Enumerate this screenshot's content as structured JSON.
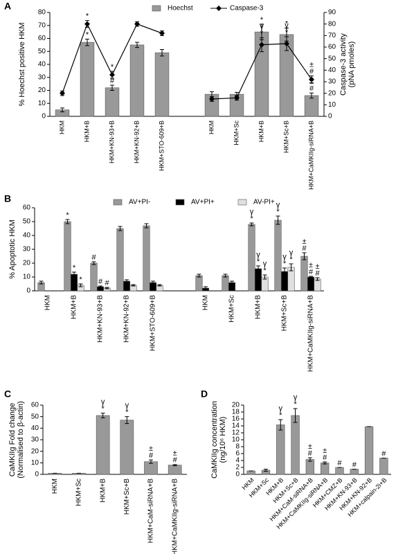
{
  "chart_data": [
    {
      "type": "bar_line",
      "label": "A",
      "legend": "top",
      "ylabel": "% Hoechst positive HKM",
      "y2label": [
        "Caspase-3 activity",
        "(pNA pmoles)"
      ],
      "categories": [
        "HKM",
        "HKM+B",
        "HKM+KN-93+B",
        "HKM+KN-92+B",
        "HKM+STO-609+B",
        null,
        "HKM",
        "HKM+Sc",
        "HKM+B",
        "HKM+Sc+B",
        "HKM+CaMKIIg-siRNA+B"
      ],
      "ylim": [
        0,
        80
      ],
      "yticks": [
        0,
        10,
        20,
        30,
        40,
        50,
        60,
        70,
        80
      ],
      "y2lim": [
        0,
        90
      ],
      "y2ticks": [
        0,
        10,
        20,
        30,
        40,
        50,
        60,
        70,
        80,
        90
      ],
      "series": [
        {
          "name": "Hoechst",
          "color": "#999999",
          "values": [
            5,
            57,
            22,
            55,
            49,
            null,
            17,
            17,
            65,
            63,
            16
          ],
          "errors": [
            1.5,
            2.5,
            2,
            2,
            2.5,
            null,
            2,
            1.5,
            6,
            5,
            2
          ],
          "annotations": [
            null,
            [
              "*"
            ],
            [
              "#"
            ],
            null,
            null,
            null,
            null,
            null,
            [
              "*"
            ],
            [
              "*"
            ],
            [
              "±",
              "#"
            ]
          ]
        },
        {
          "name": "Caspase-3",
          "color": "#000000",
          "type": "line",
          "axis": "y2",
          "values": [
            20,
            80,
            36,
            80,
            72,
            null,
            15,
            16,
            62,
            63,
            32
          ],
          "errors": [
            2,
            3,
            3,
            2,
            2,
            null,
            2,
            2,
            6,
            6,
            3
          ],
          "annotations": [
            null,
            [
              "*"
            ],
            [
              "*"
            ],
            null,
            null,
            null,
            null,
            null,
            [
              "γ",
              "*"
            ],
            [
              "γ",
              "*"
            ],
            [
              "±",
              "#"
            ]
          ]
        }
      ]
    },
    {
      "type": "bar",
      "label": "B",
      "legend": "top",
      "ylabel": "% Apoptotic HKM",
      "categories": [
        "HKM",
        "HKM+B",
        "HKM+KN-93+B",
        "HKM+KN-92+B",
        "HKM+STO-609+B",
        null,
        "HKM",
        "HKM+Sc",
        "HKM+B",
        "HKM+Sc+B",
        "HKM+CaMKIIg-siRNA+B"
      ],
      "ylim": [
        0,
        60
      ],
      "yticks": [
        0,
        10,
        20,
        30,
        40,
        50,
        60
      ],
      "series": [
        {
          "name": "AV+PI-",
          "color": "#999999",
          "values": [
            6,
            50,
            20,
            45,
            47,
            null,
            11,
            11,
            48,
            51,
            25
          ],
          "errors": [
            1,
            1.5,
            1,
            1.5,
            1.5,
            null,
            1,
            1,
            1,
            3,
            2.5
          ],
          "annotations": [
            null,
            [
              "*"
            ],
            [
              "#"
            ],
            null,
            null,
            null,
            null,
            null,
            [
              "γ",
              "*"
            ],
            [
              "γ",
              "*"
            ],
            [
              "±",
              "#"
            ]
          ]
        },
        {
          "name": "AV+PI+",
          "color": "#000000",
          "values": [
            null,
            12,
            3,
            7,
            6,
            null,
            2,
            6,
            16,
            14,
            10
          ],
          "errors": [
            null,
            1.5,
            0.5,
            1,
            1,
            null,
            1,
            1,
            2,
            2.5,
            0.5
          ],
          "annotations": [
            null,
            [
              "*"
            ],
            [
              "#"
            ],
            null,
            null,
            null,
            null,
            null,
            [
              "γ",
              "*"
            ],
            [
              "γ",
              "*"
            ],
            [
              "±",
              "#"
            ]
          ]
        },
        {
          "name": "AV-PI+",
          "color": "#e0e0e0",
          "values": [
            null,
            4,
            2,
            4,
            4,
            null,
            null,
            null,
            10,
            17,
            8.5
          ],
          "errors": [
            null,
            1,
            0.5,
            0.5,
            0.5,
            null,
            null,
            null,
            1.5,
            2.5,
            1
          ],
          "annotations": [
            null,
            [
              "*"
            ],
            [
              "#"
            ],
            null,
            null,
            null,
            null,
            null,
            [
              "γ",
              "*"
            ],
            [
              "γ",
              "*"
            ],
            [
              "±",
              "#"
            ]
          ]
        }
      ]
    },
    {
      "type": "bar",
      "label": "C",
      "ylabel": [
        "CaMKIIg Fold change",
        "(Normalised to β-actin)"
      ],
      "categories": [
        "HKM",
        "HKM+Sc",
        "HKM+B",
        "HKM+Sc+B",
        "HKM+CaM-siRNA+B",
        "HKM+CaMKIIg-siRNA+B"
      ],
      "ylim": [
        0,
        60
      ],
      "yticks": [
        0,
        10,
        20,
        30,
        40,
        50,
        60
      ],
      "series": [
        {
          "color": "#999999",
          "values": [
            1,
            1,
            51,
            47,
            11,
            8
          ],
          "errors": [
            0,
            0,
            2,
            3,
            1.5,
            0.5
          ],
          "annotations": [
            null,
            null,
            [
              "γ",
              "*"
            ],
            [
              "γ",
              "*"
            ],
            [
              "±",
              "#"
            ],
            [
              "±",
              "#"
            ]
          ]
        }
      ]
    },
    {
      "type": "bar",
      "label": "D",
      "ylabel": [
        "CaMKIIg concentration",
        "(ng/10⁶ HKM)"
      ],
      "categories": [
        "HKM",
        "HKM+Sc",
        "HKM+B",
        "HKM+Sc+B",
        "HKM+CaM-siRNA+B",
        "HKM+CaMKIIg-siRNA+B",
        "HKM+CMZ+B",
        "HKM+KN-93+B",
        "HKM+KN-92+B",
        "HKM+calpain-2i+B"
      ],
      "ylim": [
        0,
        20
      ],
      "yticks": [
        0,
        2,
        4,
        6,
        8,
        10,
        12,
        14,
        16,
        18,
        20
      ],
      "series": [
        {
          "color": "#999999",
          "values": [
            1,
            1.2,
            14.3,
            17,
            4.3,
            3.3,
            2,
            1.5,
            13.8,
            4.7
          ],
          "errors": [
            0,
            0.3,
            1.5,
            2,
            0.5,
            0.3,
            0,
            0,
            0,
            0
          ],
          "annotations": [
            null,
            null,
            [
              "γ",
              "*"
            ],
            [
              "γ",
              "*"
            ],
            [
              "±",
              "#"
            ],
            [
              "±",
              "#"
            ],
            [
              "#"
            ],
            [
              "#"
            ],
            null,
            [
              "#"
            ]
          ]
        }
      ]
    }
  ]
}
